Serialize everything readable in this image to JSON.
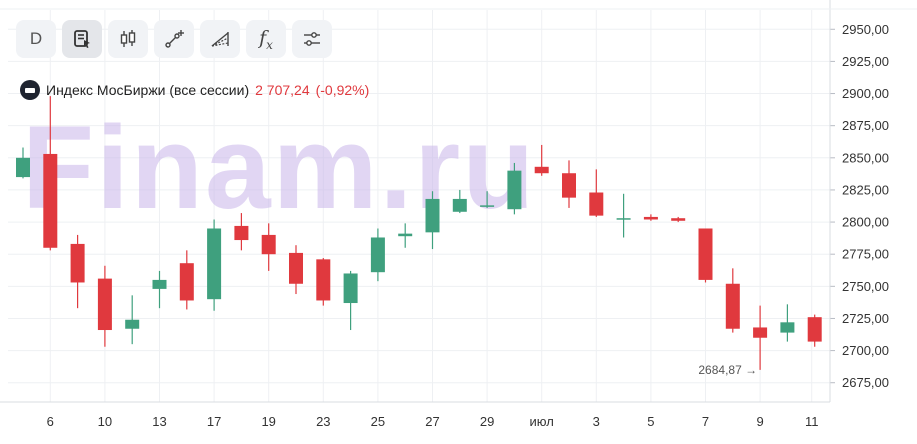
{
  "toolbar": {
    "interval_label": "D",
    "buttons": [
      {
        "name": "interval-button",
        "icon": "text"
      },
      {
        "name": "templates-button",
        "icon": "document-cursor-icon"
      },
      {
        "name": "chart-type-button",
        "icon": "candlesticks-icon"
      },
      {
        "name": "drawing-tools-button",
        "icon": "line-plus-icon"
      },
      {
        "name": "patterns-button",
        "icon": "fan-icon"
      },
      {
        "name": "indicators-button",
        "icon": "function-icon"
      },
      {
        "name": "settings-button",
        "icon": "sliders-icon"
      }
    ],
    "fx_label": "f",
    "fx_sub": "x"
  },
  "legend": {
    "name": "Индекс МосБиржи (все сессии)",
    "price": "2 707,24",
    "change": "(-0,92%)",
    "logo_icon": "moex-logo-icon"
  },
  "watermark": "Finam.ru",
  "colors": {
    "up": "#3fa07e",
    "down": "#e0393e",
    "grid": "#eef0f3",
    "axis": "#d9dce1"
  },
  "chart_data": {
    "type": "candlestick",
    "title": "",
    "ylim": [
      2660,
      2965
    ],
    "y_ticks": [
      "2950,00",
      "2925,00",
      "2900,00",
      "2875,00",
      "2850,00",
      "2825,00",
      "2800,00",
      "2775,00",
      "2750,00",
      "2725,00",
      "2700,00",
      "2675,00"
    ],
    "x_ticks": [
      "6",
      "10",
      "13",
      "17",
      "19",
      "23",
      "25",
      "27",
      "29",
      "июл",
      "3",
      "5",
      "7",
      "9",
      "11"
    ],
    "min_label": "2684,87 →",
    "grid": true,
    "candles": [
      {
        "o": 2835,
        "h": 2858,
        "l": 2834,
        "c": 2850
      },
      {
        "o": 2853,
        "h": 2898,
        "l": 2778,
        "c": 2780
      },
      {
        "o": 2783,
        "h": 2790,
        "l": 2733,
        "c": 2753
      },
      {
        "o": 2756,
        "h": 2766,
        "l": 2703,
        "c": 2716
      },
      {
        "o": 2717,
        "h": 2743,
        "l": 2705,
        "c": 2724
      },
      {
        "o": 2748,
        "h": 2762,
        "l": 2733,
        "c": 2755
      },
      {
        "o": 2768,
        "h": 2778,
        "l": 2732,
        "c": 2739
      },
      {
        "o": 2740,
        "h": 2802,
        "l": 2731,
        "c": 2795
      },
      {
        "o": 2797,
        "h": 2807,
        "l": 2778,
        "c": 2786
      },
      {
        "o": 2790,
        "h": 2799,
        "l": 2762,
        "c": 2775
      },
      {
        "o": 2776,
        "h": 2782,
        "l": 2744,
        "c": 2752
      },
      {
        "o": 2771,
        "h": 2772,
        "l": 2735,
        "c": 2739
      },
      {
        "o": 2737,
        "h": 2762,
        "l": 2716,
        "c": 2760
      },
      {
        "o": 2761,
        "h": 2795,
        "l": 2754,
        "c": 2788
      },
      {
        "o": 2789,
        "h": 2799,
        "l": 2780,
        "c": 2791
      },
      {
        "o": 2792,
        "h": 2824,
        "l": 2779,
        "c": 2818
      },
      {
        "o": 2808,
        "h": 2825,
        "l": 2807,
        "c": 2818
      },
      {
        "o": 2812,
        "h": 2824,
        "l": 2811,
        "c": 2813
      },
      {
        "o": 2810,
        "h": 2846,
        "l": 2806,
        "c": 2840
      },
      {
        "o": 2843,
        "h": 2860,
        "l": 2836,
        "c": 2838
      },
      {
        "o": 2838,
        "h": 2848,
        "l": 2811,
        "c": 2819
      },
      {
        "o": 2823,
        "h": 2841,
        "l": 2804,
        "c": 2805
      },
      {
        "o": 2803,
        "h": 2822,
        "l": 2788,
        "c": 2803
      },
      {
        "o": 2804,
        "h": 2806,
        "l": 2801,
        "c": 2802
      },
      {
        "o": 2803,
        "h": 2804,
        "l": 2800,
        "c": 2801
      },
      {
        "o": 2795,
        "h": 2795,
        "l": 2753,
        "c": 2755
      },
      {
        "o": 2752,
        "h": 2764,
        "l": 2714,
        "c": 2717
      },
      {
        "o": 2718,
        "h": 2735,
        "l": 2685,
        "c": 2710
      },
      {
        "o": 2714,
        "h": 2736,
        "l": 2707,
        "c": 2722
      },
      {
        "o": 2726,
        "h": 2728,
        "l": 2703,
        "c": 2707
      }
    ]
  }
}
